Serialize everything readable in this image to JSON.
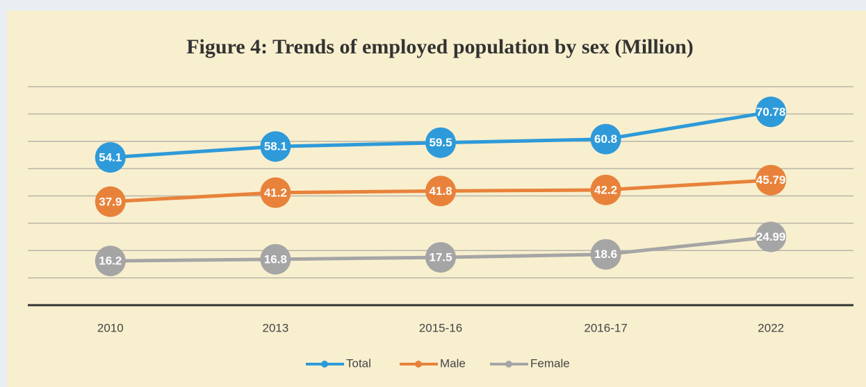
{
  "chart_data": {
    "type": "line",
    "title": "Figure 4: Trends of employed population by sex (Million)",
    "categories": [
      "2010",
      "2013",
      "2015-16",
      "2016-17",
      "2022"
    ],
    "series": [
      {
        "name": "Total",
        "color": "#2e9ad9",
        "values": [
          54.1,
          58.1,
          59.5,
          60.8,
          70.78
        ]
      },
      {
        "name": "Male",
        "color": "#e8823a",
        "values": [
          37.9,
          41.2,
          41.8,
          42.2,
          45.79
        ]
      },
      {
        "name": "Female",
        "color": "#a5a5a5",
        "values": [
          16.2,
          16.8,
          17.5,
          18.6,
          24.99
        ]
      }
    ],
    "ylim": [
      0,
      80
    ],
    "yticks": [
      0,
      10,
      20,
      30,
      40,
      50,
      60,
      70,
      80
    ],
    "grid": true
  }
}
